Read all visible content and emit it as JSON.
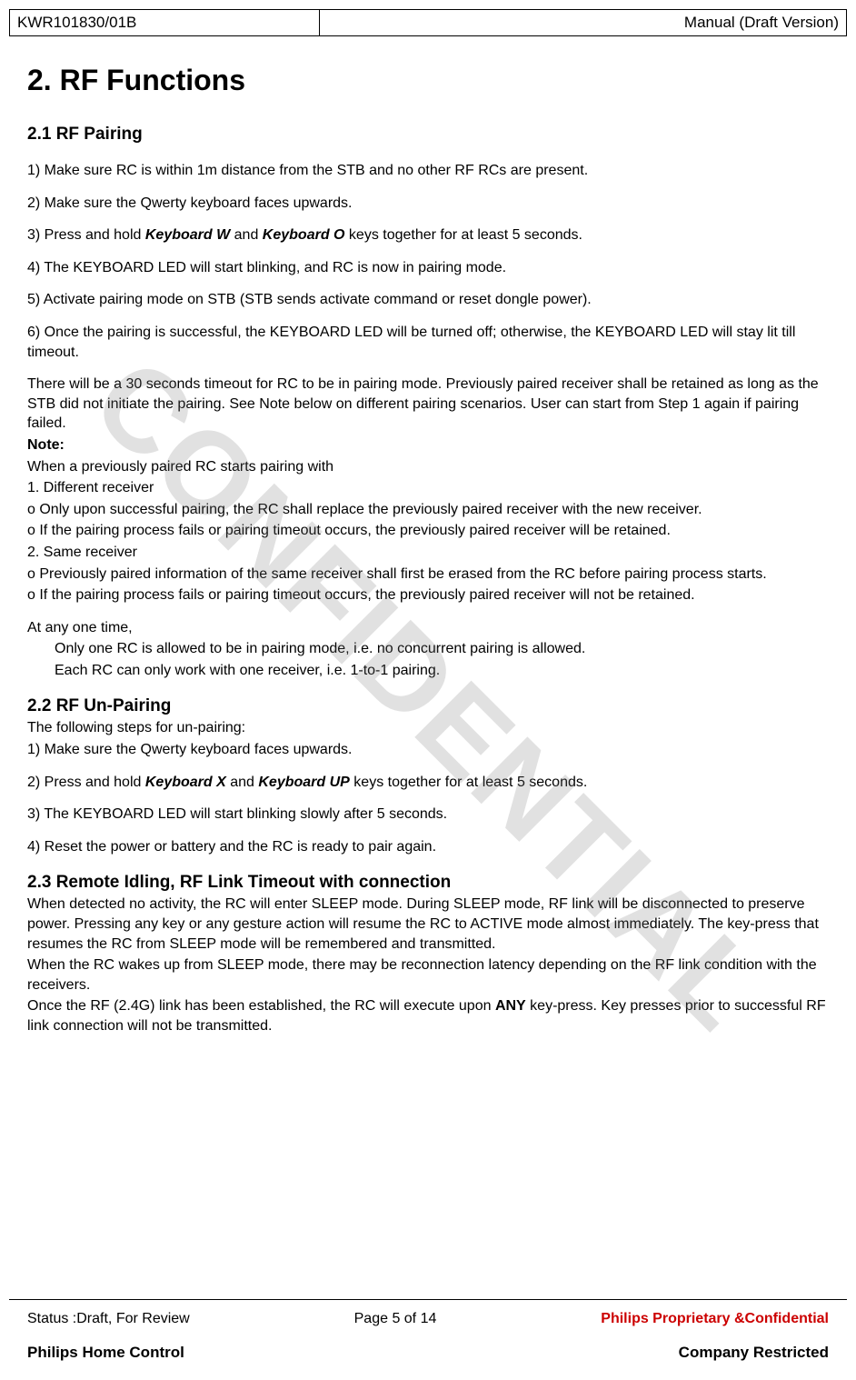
{
  "header": {
    "doc_id": "KWR101830/01B",
    "doc_type": "Manual (Draft Version)"
  },
  "watermark": "CONFIDENTIAL",
  "title": "2. RF Functions",
  "section_2_1": {
    "heading": "2.1 RF Pairing",
    "step1": "1) Make sure RC is within 1m distance from the STB and no other RF RCs are present.",
    "step2": "2) Make sure the Qwerty keyboard faces upwards.",
    "step3_a": "3) Press and hold ",
    "step3_kw": "Keyboard W",
    "step3_b": " and ",
    "step3_ko": "Keyboard O",
    "step3_c": " keys together for at least 5 seconds.",
    "step4": "4) The KEYBOARD LED will start blinking, and RC is now in pairing mode.",
    "step5": "5) Activate pairing mode on STB (STB sends activate command or reset dongle power).",
    "step6": "6) Once the pairing is successful, the KEYBOARD LED will be turned off; otherwise, the KEYBOARD LED will stay lit till timeout.",
    "timeout_para": "There will be a 30 seconds timeout for RC to be in pairing mode. Previously paired receiver shall be retained as long as the STB did not initiate the pairing. See Note below on different pairing scenarios. User can start from Step 1 again if pairing failed.",
    "note_label": "Note:",
    "note_intro": "When a previously paired RC starts pairing with",
    "note_1": "1. Different receiver",
    "note_1a": "o  Only upon successful pairing, the RC shall replace the previously paired receiver with the new receiver.",
    "note_1b": "o  If the pairing process fails or pairing timeout occurs, the previously paired receiver will be retained.",
    "note_2": "2. Same receiver",
    "note_2a": "o  Previously paired information of the same receiver shall first be erased from the RC before pairing process starts.",
    "note_2b": "o  If the pairing process fails or pairing timeout occurs, the previously paired receiver will not be retained.",
    "anytime": "At any one time,",
    "anytime_a": "Only one RC is allowed to be in pairing mode, i.e. no concurrent pairing is allowed.",
    "anytime_b": "Each RC can only work with one receiver, i.e. 1-to-1 pairing."
  },
  "section_2_2": {
    "heading": "2.2 RF Un-Pairing",
    "intro": "The following steps for un-pairing:",
    "step1": "1) Make sure the Qwerty keyboard faces upwards.",
    "step2_a": "2) Press and hold ",
    "step2_kx": "Keyboard X",
    "step2_b": " and ",
    "step2_kup": "Keyboard UP",
    "step2_c": " keys together for at least 5 seconds.",
    "step3": "3) The KEYBOARD LED will start blinking slowly after 5 seconds.",
    "step4": "4) Reset the power or battery and the RC is ready to pair again."
  },
  "section_2_3": {
    "heading": "2.3 Remote Idling, RF Link Timeout with connection",
    "p1": "When detected no activity, the RC will enter SLEEP mode. During SLEEP mode, RF link will be disconnected to preserve power. Pressing any key or any gesture action will resume the RC to ACTIVE mode almost immediately. The key-press that resumes the RC from SLEEP mode will be remembered and transmitted.",
    "p2": "When the RC wakes up from SLEEP mode, there may be reconnection latency depending on the RF link condition with the receivers.",
    "p3_a": "Once the RF (2.4G) link has been established, the RC will execute upon ",
    "p3_any": "ANY",
    "p3_b": " key-press. Key presses prior to successful RF link connection will not be transmitted."
  },
  "footer": {
    "status": "Status :Draft, For Review",
    "page": "Page 5 of  14",
    "proprietary": "Philips Proprietary &Confidential",
    "company": "Philips Home Control",
    "restricted": "Company Restricted"
  }
}
